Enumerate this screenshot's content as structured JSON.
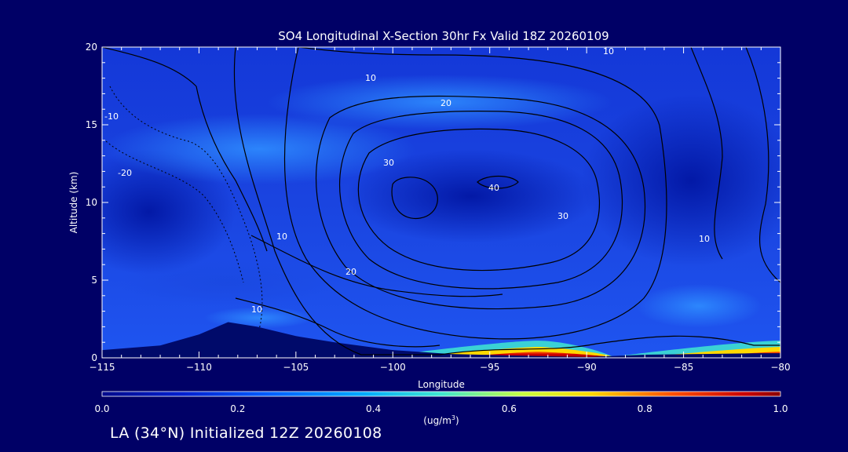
{
  "chart_data": {
    "type": "heatmap",
    "title": "SO4 Longitudinal X-Section 30hr  Fx Valid 18Z 20260109",
    "xlabel": "Longitude",
    "ylabel": "Altitude (km)",
    "xlim": [
      -115,
      -80
    ],
    "ylim": [
      0,
      20
    ],
    "x_ticks": [
      -115,
      -110,
      -105,
      -100,
      -95,
      -90,
      -85,
      -80
    ],
    "x_tick_labels": [
      "−115",
      "−110",
      "−105",
      "−100",
      "−95",
      "−90",
      "−85",
      "−80"
    ],
    "y_ticks": [
      0,
      5,
      10,
      15,
      20
    ],
    "colorbar": {
      "min": 0.0,
      "max": 1.0,
      "ticks": [
        "0.0",
        "0.2",
        "0.4",
        "0.6",
        "0.8",
        "1.0"
      ],
      "unit_label": "(ug/m",
      "unit_superscript": "3",
      "unit_close": ")"
    },
    "terrain_km": [
      [
        -115,
        0.5
      ],
      [
        -112,
        0.8
      ],
      [
        -110,
        1.5
      ],
      [
        -108.5,
        2.3
      ],
      [
        -107,
        2.0
      ],
      [
        -105,
        1.4
      ],
      [
        -103,
        1.0
      ],
      [
        -100,
        0.5
      ],
      [
        -97,
        0.25
      ],
      [
        -94,
        0.15
      ],
      [
        -90,
        0.05
      ],
      [
        -87,
        0.2
      ],
      [
        -84,
        0.25
      ],
      [
        -81,
        0.3
      ],
      [
        -80,
        0.3
      ]
    ],
    "surface_high": [
      {
        "x_from": -101,
        "x_to": -88.5,
        "peak_x": -92.5,
        "peak": 1.0
      },
      {
        "x_from": -89,
        "x_to": -80,
        "peak_x": -80,
        "peak": 1.0
      }
    ],
    "contour_labels": [
      "10",
      "10",
      "20",
      "30",
      "40",
      "30",
      "20",
      "10",
      "10",
      "10",
      "-20",
      "-10"
    ]
  },
  "footer": "LA (34°N) Initialized 12Z 20260108"
}
